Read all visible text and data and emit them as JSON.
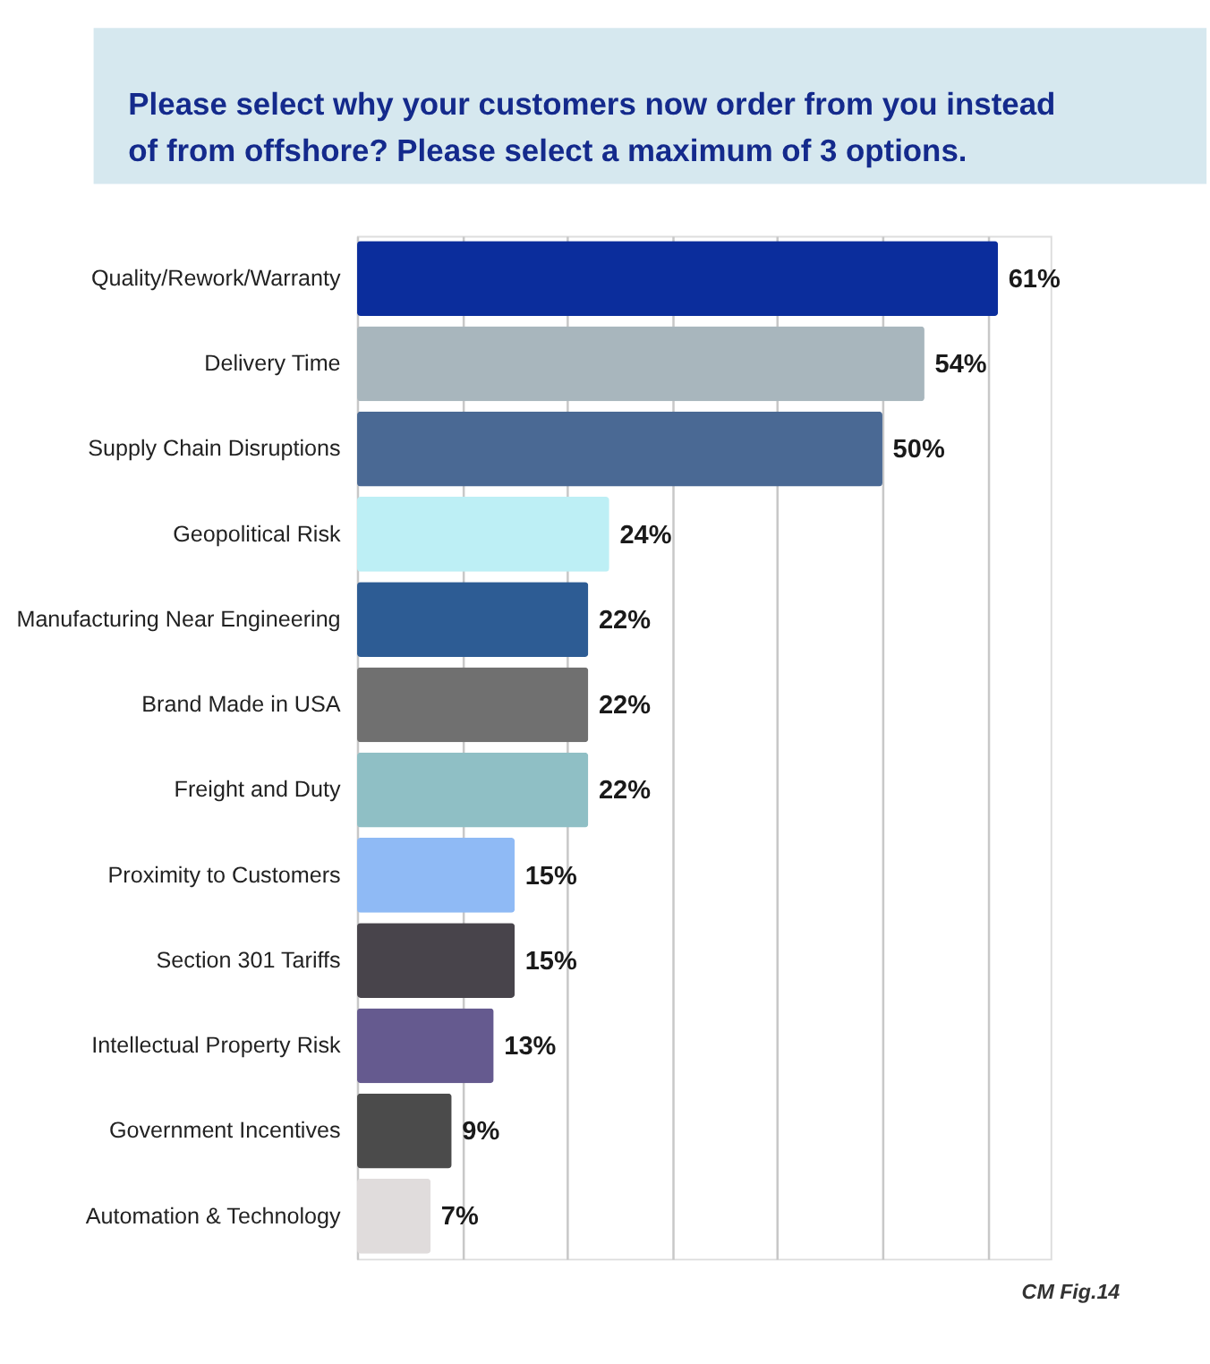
{
  "chart_data": {
    "type": "bar",
    "orientation": "horizontal",
    "title": "Please select why your customers now order from you instead of from offshore? Please select a maximum of 3 options.",
    "categories": [
      "Quality/Rework/Warranty",
      "Delivery Time",
      "Supply Chain Disruptions",
      "Geopolitical Risk",
      "Manufacturing Near Engineering",
      "Brand Made in USA",
      "Freight and Duty",
      "Proximity to Customers",
      "Section 301 Tariffs",
      "Intellectual Property Risk",
      "Government Incentives",
      "Automation & Technology"
    ],
    "values": [
      61,
      54,
      50,
      24,
      22,
      22,
      22,
      15,
      15,
      13,
      9,
      7
    ],
    "value_labels": [
      "61%",
      "54%",
      "50%",
      "24%",
      "22%",
      "22%",
      "22%",
      "15%",
      "15%",
      "13%",
      "9%",
      "7%"
    ],
    "colors": [
      "#0b2d9c",
      "#a8b6bd",
      "#4a6994",
      "#bdeff5",
      "#2d5c94",
      "#707070",
      "#8fbfc5",
      "#8fbaf5",
      "#48444b",
      "#655a8f",
      "#4b4b4b",
      "#e0dcdc"
    ],
    "xlim": [
      0,
      66
    ],
    "xticks": [
      {
        "value": 0,
        "label": null
      },
      {
        "value": 10,
        "label": null
      },
      {
        "value": 20,
        "label": null
      },
      {
        "value": 30,
        "label": null
      },
      {
        "value": 40,
        "label": null
      },
      {
        "value": 50,
        "label": null
      },
      {
        "value": 60,
        "label": null
      }
    ],
    "grid": "x",
    "tick_labels": "y",
    "annotations": [
      "CM Fig.14"
    ]
  }
}
